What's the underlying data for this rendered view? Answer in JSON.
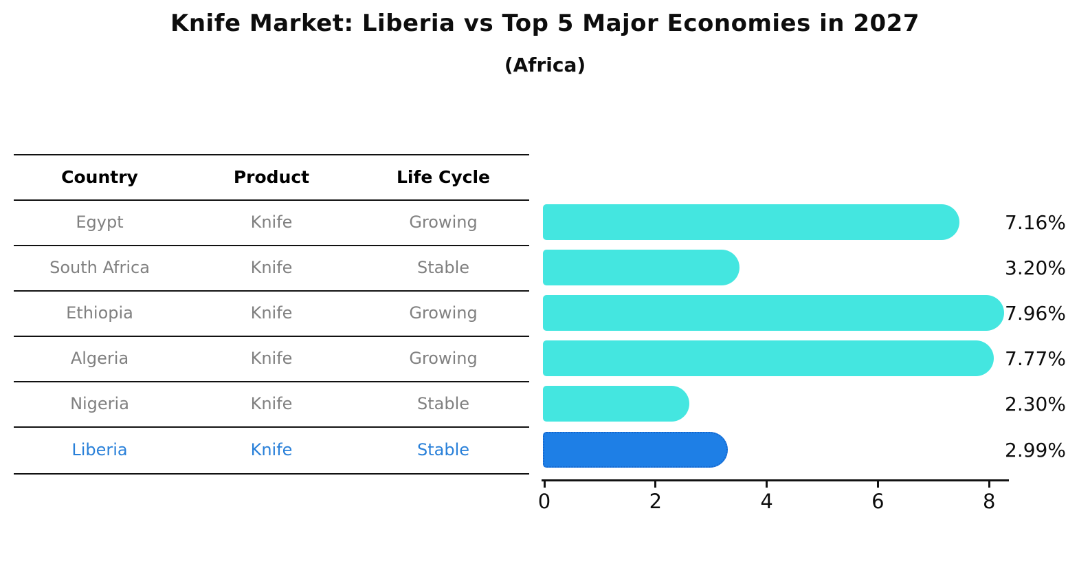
{
  "title": "Knife Market: Liberia vs Top 5 Major Economies in 2027",
  "subtitle": "(Africa)",
  "table": {
    "columns": [
      "Country",
      "Product",
      "Life Cycle"
    ],
    "rows": [
      {
        "country": "Egypt",
        "product": "Knife",
        "life_cycle": "Growing",
        "highlight": false
      },
      {
        "country": "South Africa",
        "product": "Knife",
        "life_cycle": "Stable",
        "highlight": false
      },
      {
        "country": "Ethiopia",
        "product": "Knife",
        "life_cycle": "Growing",
        "highlight": false
      },
      {
        "country": "Algeria",
        "product": "Knife",
        "life_cycle": "Growing",
        "highlight": false
      },
      {
        "country": "Nigeria",
        "product": "Knife",
        "life_cycle": "Stable",
        "highlight": false
      },
      {
        "country": "Liberia",
        "product": "Knife",
        "life_cycle": "Stable",
        "highlight": true
      }
    ]
  },
  "chart_data": {
    "type": "bar",
    "orientation": "horizontal",
    "title": "Knife Market: Liberia vs Top 5 Major Economies in 2027 (Africa)",
    "categories": [
      "Egypt",
      "South Africa",
      "Ethiopia",
      "Algeria",
      "Nigeria",
      "Liberia"
    ],
    "values": [
      7.16,
      3.2,
      7.96,
      7.77,
      2.3,
      2.99
    ],
    "value_labels": [
      "7.16%",
      "3.20%",
      "7.96%",
      "7.77%",
      "2.30%",
      "2.99%"
    ],
    "highlight_category": "Liberia",
    "x_ticks": [
      "0",
      "2",
      "4",
      "6",
      "8"
    ],
    "x_tick_values": [
      0,
      2,
      4,
      6,
      8
    ],
    "xlim": [
      0,
      8.4
    ],
    "grid": false,
    "legend_position": "none"
  },
  "colors": {
    "bar": "#44E6E0",
    "highlight_bar": "#1E7FE6",
    "highlight_border": "#1465CC",
    "highlight_text": "#2980D9",
    "row_text": "#808080",
    "header_text": "#000000",
    "axis": "#111111"
  }
}
